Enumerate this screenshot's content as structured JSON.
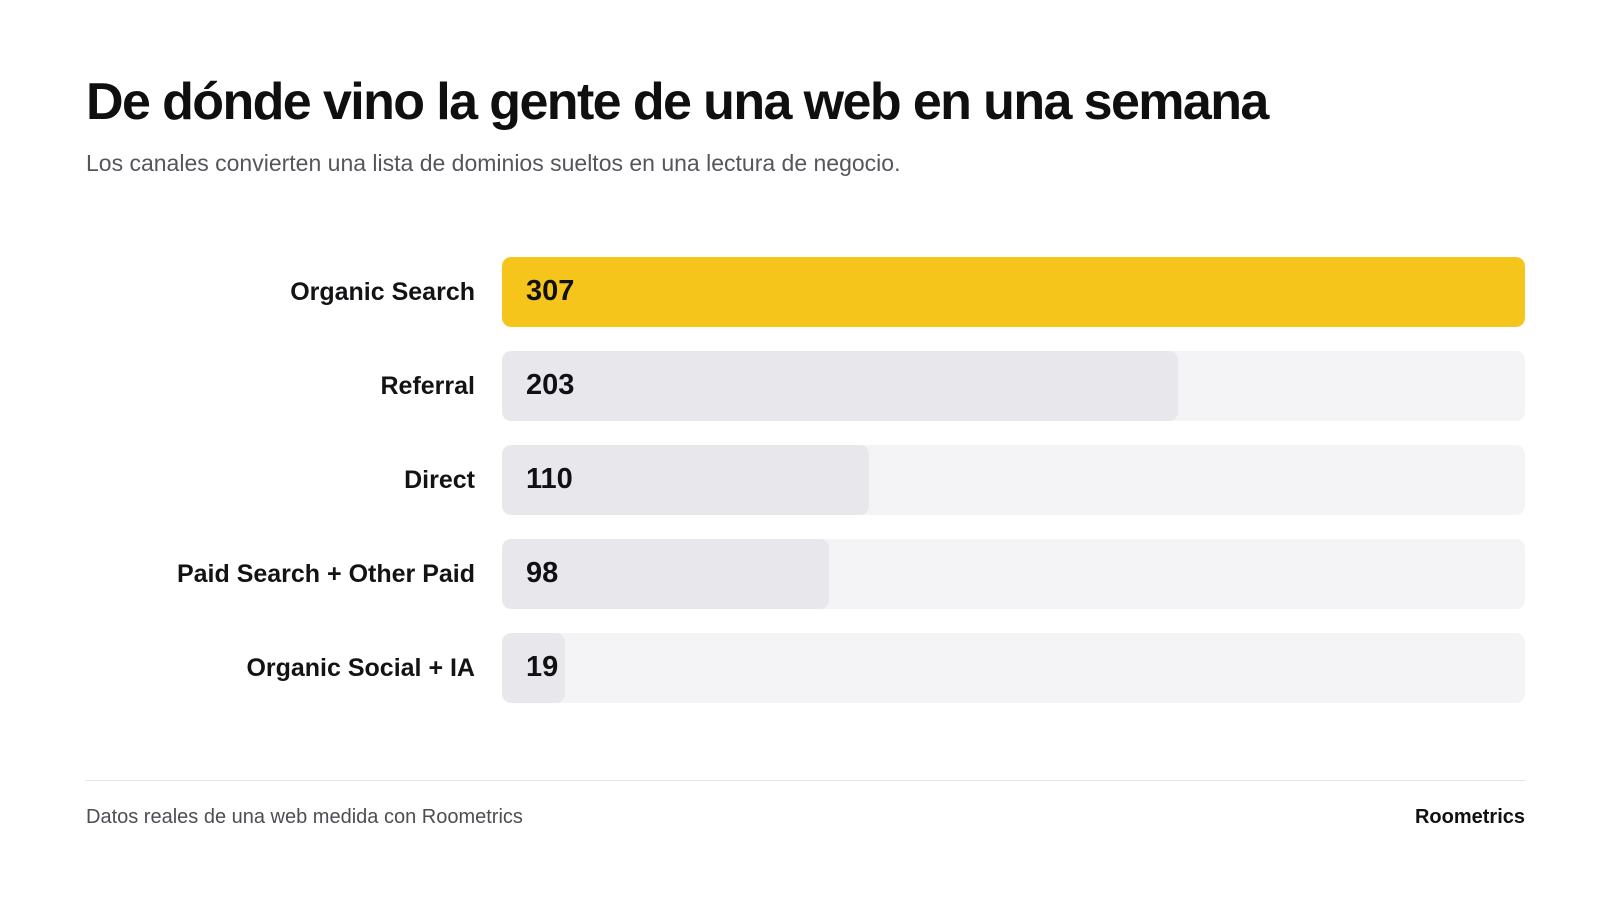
{
  "header": {
    "title": "De dónde vino la gente de una web en una semana",
    "subtitle": "Los canales convierten una lista de dominios sueltos en una lectura de negocio."
  },
  "chart_data": {
    "type": "bar",
    "orientation": "horizontal",
    "categories": [
      "Organic Search",
      "Referral",
      "Direct",
      "Paid Search + Other Paid",
      "Organic Social + IA"
    ],
    "values": [
      307,
      203,
      110,
      98,
      19
    ],
    "labels": [
      "307",
      "203",
      "110",
      "98",
      "19"
    ],
    "xlim": [
      0,
      307
    ],
    "grid": false,
    "highlight_index": 0,
    "colors": {
      "highlight": "#F5C51C",
      "bar": "#E8E8EC",
      "track": "#F4F4F6"
    }
  },
  "footer": {
    "source": "Datos reales de una web medida con Roometrics",
    "brand": "Roometrics"
  }
}
